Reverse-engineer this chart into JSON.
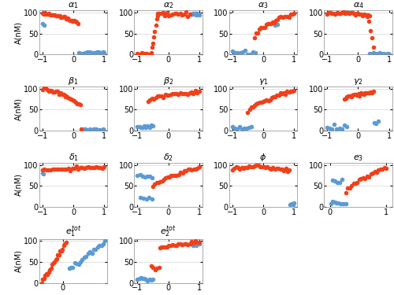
{
  "red_color": "#F0401A",
  "blue_color": "#5B9BD5",
  "marker_size": 4,
  "ylabel": "A(nM)",
  "title_fontsize": 8,
  "tick_fontsize": 7,
  "label_fontsize": 7,
  "subplots": [
    {
      "label": "$\\alpha_1$",
      "has_ylabel": true,
      "row": 0,
      "col": 0,
      "xlim": [
        -1.1,
        1.1
      ],
      "xticks": [
        -1,
        0,
        1
      ]
    },
    {
      "label": "$\\alpha_2$",
      "has_ylabel": false,
      "row": 0,
      "col": 1,
      "xlim": [
        -1.1,
        1.1
      ],
      "xticks": [
        -1,
        0,
        1
      ]
    },
    {
      "label": "$\\alpha_3$",
      "has_ylabel": false,
      "row": 0,
      "col": 2,
      "xlim": [
        -1.1,
        1.1
      ],
      "xticks": [
        -1,
        0,
        1
      ]
    },
    {
      "label": "$\\alpha_4$",
      "has_ylabel": false,
      "row": 0,
      "col": 3,
      "xlim": [
        -1.1,
        1.1
      ],
      "xticks": [
        -1,
        0,
        1
      ]
    },
    {
      "label": "$\\beta_1$",
      "has_ylabel": true,
      "row": 1,
      "col": 0,
      "xlim": [
        -1.1,
        1.1
      ],
      "xticks": [
        -1,
        0,
        1
      ]
    },
    {
      "label": "$\\beta_2$",
      "has_ylabel": false,
      "row": 1,
      "col": 1,
      "xlim": [
        -1.1,
        1.1
      ],
      "xticks": [
        -1,
        0,
        1
      ]
    },
    {
      "label": "$\\gamma_1$",
      "has_ylabel": false,
      "row": 1,
      "col": 2,
      "xlim": [
        -1.1,
        1.1
      ],
      "xticks": [
        -1,
        0,
        1
      ]
    },
    {
      "label": "$\\gamma_2$",
      "has_ylabel": false,
      "row": 1,
      "col": 3,
      "xlim": [
        -1.1,
        1.1
      ],
      "xticks": [
        -1,
        0,
        1
      ]
    },
    {
      "label": "$\\delta_1$",
      "has_ylabel": true,
      "row": 2,
      "col": 0,
      "xlim": [
        -1.1,
        1.1
      ],
      "xticks": [
        -1,
        0,
        1
      ]
    },
    {
      "label": "$\\delta_2$",
      "has_ylabel": false,
      "row": 2,
      "col": 1,
      "xlim": [
        -1.1,
        1.1
      ],
      "xticks": [
        -1,
        0,
        1
      ]
    },
    {
      "label": "$\\phi$",
      "has_ylabel": false,
      "row": 2,
      "col": 2,
      "xlim": [
        -1.1,
        1.1
      ],
      "xticks": [
        -1,
        0,
        1
      ]
    },
    {
      "label": "$e_3$",
      "has_ylabel": false,
      "row": 2,
      "col": 3,
      "xlim": [
        -0.1,
        1.1
      ],
      "xticks": [
        0,
        1
      ]
    },
    {
      "label": "$e_1^{tot}$",
      "has_ylabel": true,
      "row": 3,
      "col": 0,
      "xlim": [
        -0.55,
        1.05
      ],
      "xticks": [
        0
      ]
    },
    {
      "label": "$e_2^{tot}$",
      "has_ylabel": false,
      "row": 3,
      "col": 1,
      "xlim": [
        -1.1,
        1.1
      ],
      "xticks": [
        -1,
        0,
        1
      ]
    }
  ]
}
